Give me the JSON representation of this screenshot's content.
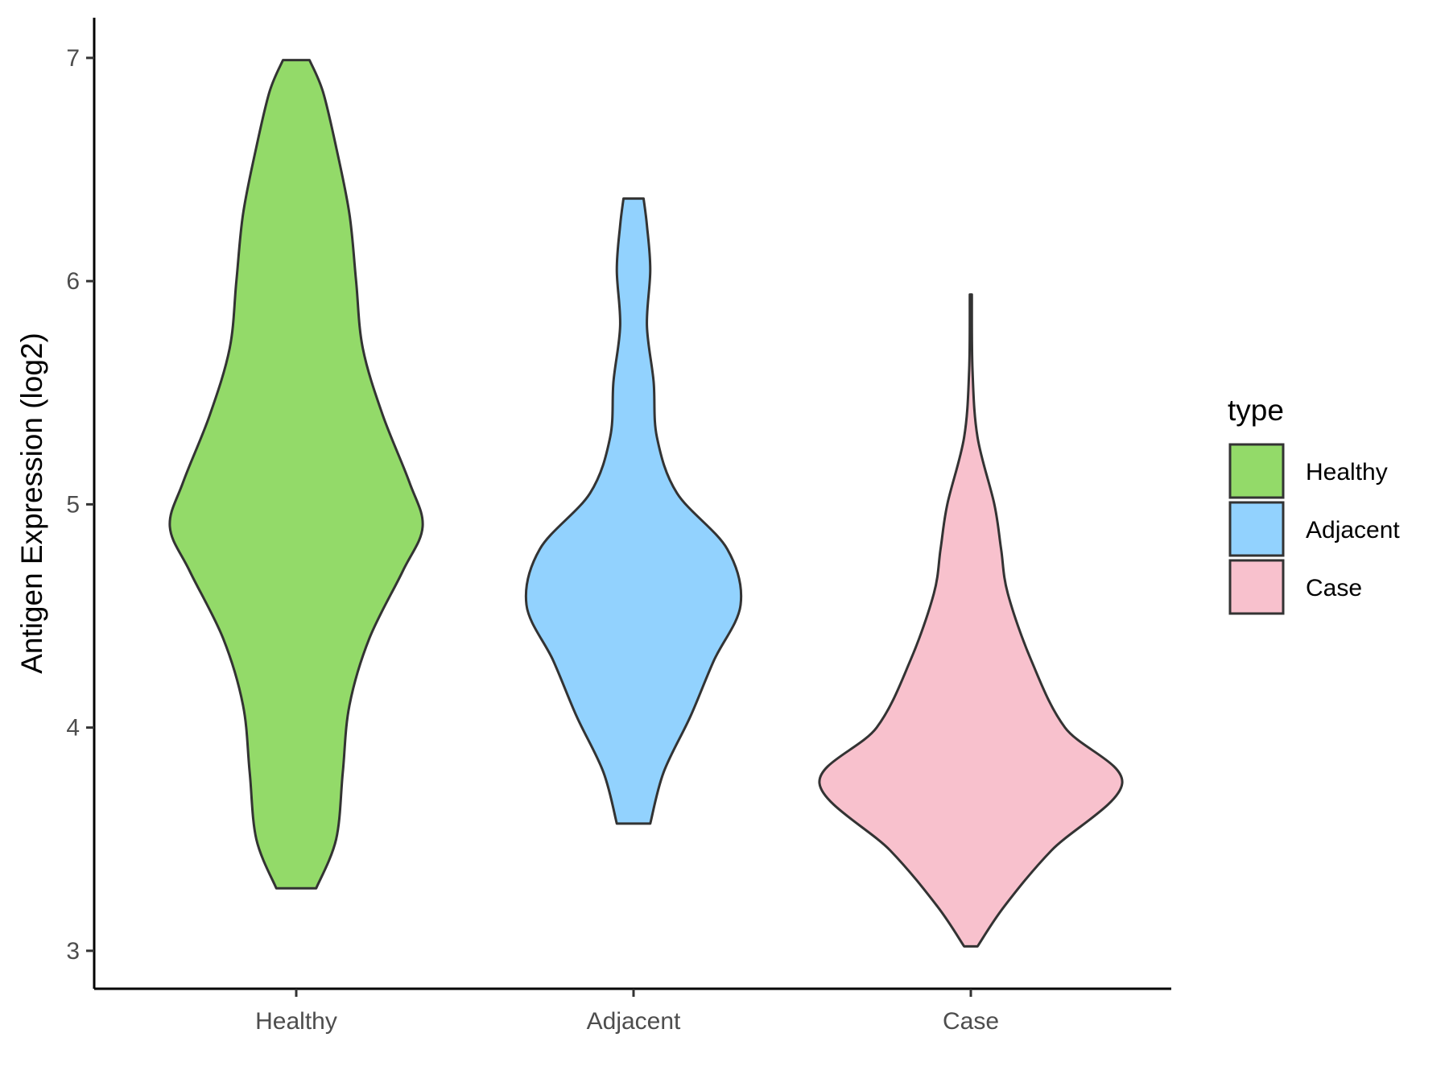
{
  "chart_data": {
    "type": "violin",
    "title": "",
    "xlabel": "",
    "ylabel": "Antigen Expression (log2)",
    "ylim": [
      2.83,
      7.18
    ],
    "y_ticks": [
      3,
      4,
      5,
      6,
      7
    ],
    "grid": false,
    "legend": {
      "title": "type",
      "position": "right",
      "entries": [
        {
          "label": "Healthy",
          "color": "#93DA69"
        },
        {
          "label": "Adjacent",
          "color": "#92D2FE"
        },
        {
          "label": "Case",
          "color": "#F8C1CD"
        }
      ]
    },
    "categories": [
      "Healthy",
      "Adjacent",
      "Case"
    ],
    "series": [
      {
        "category": "Healthy",
        "color": "#93DA69",
        "min": 3.28,
        "max": 6.99,
        "density_profile": [
          [
            3.28,
            0.03
          ],
          [
            3.5,
            0.06
          ],
          [
            3.8,
            0.07
          ],
          [
            4.1,
            0.08
          ],
          [
            4.4,
            0.11
          ],
          [
            4.7,
            0.16
          ],
          [
            4.9,
            0.19
          ],
          [
            5.1,
            0.17
          ],
          [
            5.4,
            0.13
          ],
          [
            5.7,
            0.1
          ],
          [
            6.0,
            0.09
          ],
          [
            6.3,
            0.08
          ],
          [
            6.6,
            0.06
          ],
          [
            6.85,
            0.04
          ],
          [
            6.99,
            0.02
          ]
        ]
      },
      {
        "category": "Adjacent",
        "color": "#92D2FE",
        "min": 3.57,
        "max": 6.37,
        "density_profile": [
          [
            3.57,
            0.05
          ],
          [
            3.8,
            0.09
          ],
          [
            4.05,
            0.17
          ],
          [
            4.3,
            0.24
          ],
          [
            4.55,
            0.32
          ],
          [
            4.8,
            0.28
          ],
          [
            5.05,
            0.13
          ],
          [
            5.3,
            0.07
          ],
          [
            5.55,
            0.06
          ],
          [
            5.8,
            0.04
          ],
          [
            6.05,
            0.05
          ],
          [
            6.25,
            0.04
          ],
          [
            6.37,
            0.03
          ]
        ]
      },
      {
        "category": "Case",
        "color": "#F8C1CD",
        "min": 3.02,
        "max": 5.94,
        "density_profile": [
          [
            3.02,
            0.02
          ],
          [
            3.2,
            0.1
          ],
          [
            3.45,
            0.24
          ],
          [
            3.75,
            0.45
          ],
          [
            4.0,
            0.28
          ],
          [
            4.3,
            0.18
          ],
          [
            4.6,
            0.11
          ],
          [
            4.8,
            0.09
          ],
          [
            5.0,
            0.07
          ],
          [
            5.3,
            0.02
          ],
          [
            5.6,
            0.005
          ],
          [
            5.94,
            0.003
          ]
        ]
      }
    ]
  }
}
